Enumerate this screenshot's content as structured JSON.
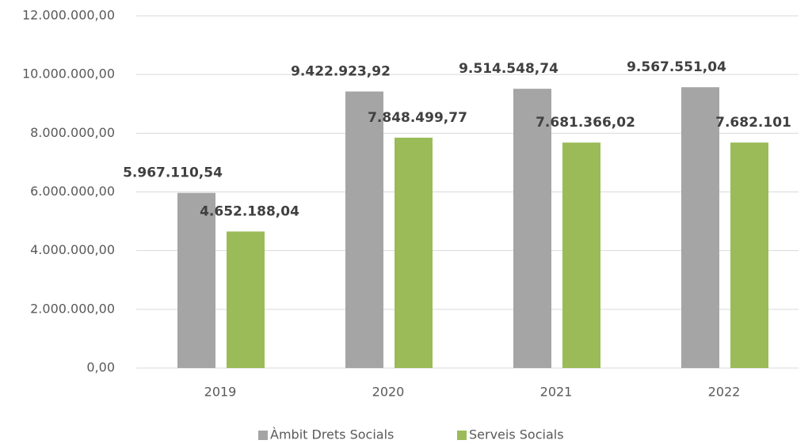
{
  "chart_data": {
    "type": "bar",
    "categories": [
      "2019",
      "2020",
      "2021",
      "2022"
    ],
    "series": [
      {
        "name": "Àmbit Drets Socials",
        "color": "#a5a5a5",
        "values": [
          5967110.54,
          9422923.92,
          9514548.74,
          9567551.04
        ],
        "value_labels": [
          "5.967.110,54",
          "9.422.923,92",
          "9.514.548,74",
          "9.567.551,04"
        ]
      },
      {
        "name": "Serveis Socials",
        "color": "#9bbb59",
        "values": [
          4652188.04,
          7848499.77,
          7681366.02,
          7682101
        ],
        "value_labels": [
          "4.652.188,04",
          "7.848.499,77",
          "7.681.366,02",
          "7.682.101"
        ]
      }
    ],
    "ylim": [
      0,
      12000000
    ],
    "yticks": [
      {
        "value": 0,
        "label": "0,00"
      },
      {
        "value": 2000000,
        "label": "2.000.000,00"
      },
      {
        "value": 4000000,
        "label": "4.000.000,00"
      },
      {
        "value": 6000000,
        "label": "6.000.000,00"
      },
      {
        "value": 8000000,
        "label": "8.000.000,00"
      },
      {
        "value": 10000000,
        "label": "10.000.000,00"
      },
      {
        "value": 12000000,
        "label": "12.000.000,00"
      }
    ],
    "grid": true,
    "legend": "bottom"
  }
}
